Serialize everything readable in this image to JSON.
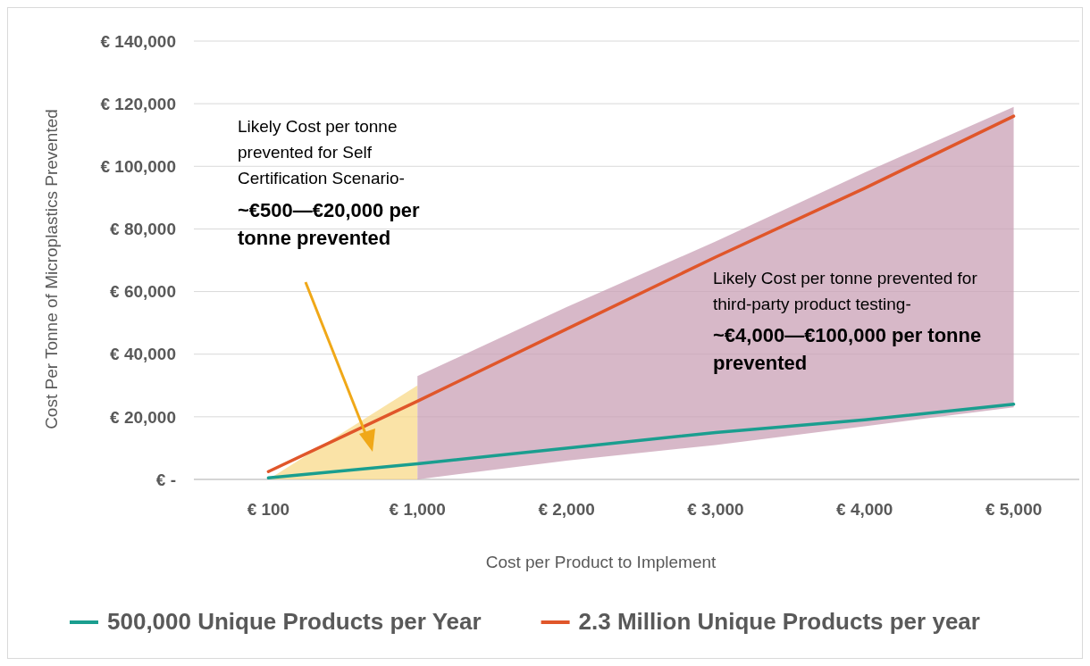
{
  "chart_data": {
    "type": "line",
    "xlabel": "Cost per Product to Implement",
    "ylabel": "Cost Per Tonne of Microplastics Prevented",
    "categories": [
      "€ 100",
      "€ 1,000",
      "€ 2,000",
      "€ 3,000",
      "€ 4,000",
      "€ 5,000"
    ],
    "series": [
      {
        "type": "area",
        "color": "#f8d98a",
        "values": [
          null,
          null,
          null,
          null,
          null,
          null
        ],
        "lower": [
          0,
          0,
          null,
          null,
          null,
          null
        ],
        "upper": [
          0,
          30000,
          null,
          null,
          null,
          null
        ]
      },
      {
        "type": "area",
        "color": "#c9a0b5",
        "values": [
          null,
          null,
          null,
          null,
          null,
          null
        ],
        "lower": [
          null,
          0,
          6000,
          11000,
          17000,
          23000
        ],
        "upper": [
          null,
          33000,
          55000,
          76000,
          98000,
          119000
        ]
      },
      {
        "name": "500,000 Unique Products per Year",
        "color": "#1a9e8f",
        "values": [
          500,
          5000,
          10000,
          15000,
          19000,
          24000
        ]
      },
      {
        "name": "2.3 Million Unique Products per year",
        "color": "#e0562a",
        "values": [
          2500,
          25000,
          48000,
          71000,
          93000,
          116000
        ]
      }
    ],
    "ylim": [
      0,
      140000
    ],
    "yticks": [
      {
        "value": 0,
        "label": "€ -"
      },
      {
        "value": 20000,
        "label": "€ 20,000"
      },
      {
        "value": 40000,
        "label": "€ 40,000"
      },
      {
        "value": 60000,
        "label": "€ 60,000"
      },
      {
        "value": 80000,
        "label": "€ 80,000"
      },
      {
        "value": 100000,
        "label": "€ 100,000"
      },
      {
        "value": 120000,
        "label": "€ 120,000"
      },
      {
        "value": 140000,
        "label": "€ 140,000"
      }
    ],
    "grid": "y",
    "legend": "bottom",
    "marker": "none",
    "line_style": "solid",
    "annotations": [
      "Likely Cost per tonne prevented for Self Certification Scenario-",
      "~€500—€20,000 per tonne prevented",
      "Likely Cost per tonne prevented for third-party product testing-",
      "~€4,000—€100,000 per tonne prevented"
    ]
  }
}
